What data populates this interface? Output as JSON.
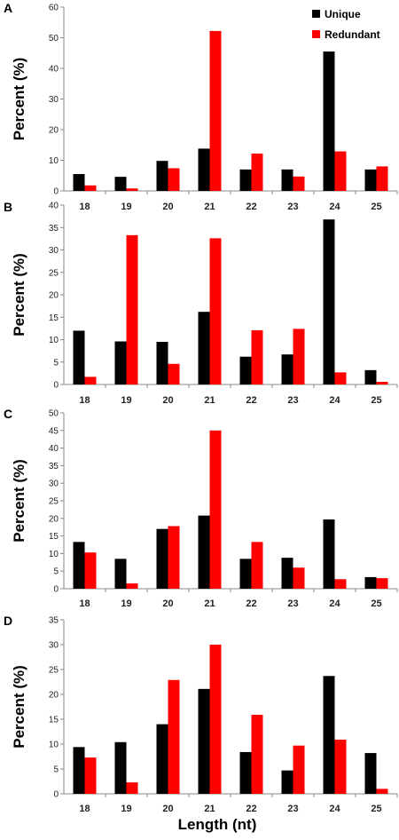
{
  "legend": {
    "unique": "Unique",
    "redundant": "Redundant"
  },
  "colors": {
    "unique": "#000000",
    "redundant": "#ff0000",
    "axis": "#888888"
  },
  "xlabel": "Length (nt)",
  "chart_data": [
    {
      "panel": "A",
      "type": "bar",
      "ylabel": "Percent (%)",
      "ylim": [
        0,
        60
      ],
      "yticks": [
        0,
        10,
        20,
        30,
        40,
        50,
        60
      ],
      "categories": [
        "18",
        "19",
        "20",
        "21",
        "22",
        "23",
        "24",
        "25"
      ],
      "series": [
        {
          "name": "Unique",
          "values": [
            5.5,
            4.6,
            9.8,
            13.8,
            7.0,
            7.0,
            45.5,
            7.0
          ]
        },
        {
          "name": "Redundant",
          "values": [
            1.8,
            0.8,
            7.4,
            52.2,
            12.2,
            4.7,
            12.9,
            8.0
          ]
        }
      ]
    },
    {
      "panel": "B",
      "type": "bar",
      "ylabel": "Percent (%)",
      "ylim": [
        0,
        40
      ],
      "yticks": [
        0,
        5,
        10,
        15,
        20,
        25,
        30,
        35,
        40
      ],
      "categories": [
        "18",
        "19",
        "20",
        "21",
        "22",
        "23",
        "24",
        "25"
      ],
      "series": [
        {
          "name": "Unique",
          "values": [
            12.0,
            9.6,
            9.5,
            16.2,
            6.2,
            6.7,
            36.8,
            3.2
          ]
        },
        {
          "name": "Redundant",
          "values": [
            1.7,
            33.3,
            4.6,
            32.6,
            12.1,
            12.4,
            2.7,
            0.6
          ]
        }
      ]
    },
    {
      "panel": "C",
      "type": "bar",
      "ylabel": "Percent (%)",
      "ylim": [
        0,
        50
      ],
      "yticks": [
        0,
        5,
        10,
        15,
        20,
        25,
        30,
        35,
        40,
        45,
        50
      ],
      "categories": [
        "18",
        "19",
        "20",
        "21",
        "22",
        "23",
        "24",
        "25"
      ],
      "series": [
        {
          "name": "Unique",
          "values": [
            13.3,
            8.5,
            17.0,
            20.8,
            8.5,
            8.8,
            19.7,
            3.3
          ]
        },
        {
          "name": "Redundant",
          "values": [
            10.3,
            1.5,
            17.8,
            45.0,
            13.3,
            6.0,
            2.7,
            3.0
          ]
        }
      ]
    },
    {
      "panel": "D",
      "type": "bar",
      "ylabel": "Percent (%)",
      "ylim": [
        0,
        35
      ],
      "yticks": [
        0,
        5,
        10,
        15,
        20,
        25,
        30,
        35
      ],
      "categories": [
        "18",
        "19",
        "20",
        "21",
        "22",
        "23",
        "24",
        "25"
      ],
      "series": [
        {
          "name": "Unique",
          "values": [
            9.4,
            10.4,
            14.0,
            21.1,
            8.4,
            4.7,
            23.7,
            8.2
          ]
        },
        {
          "name": "Redundant",
          "values": [
            7.3,
            2.3,
            22.9,
            30.0,
            15.9,
            9.7,
            10.9,
            1.0
          ]
        }
      ]
    }
  ]
}
